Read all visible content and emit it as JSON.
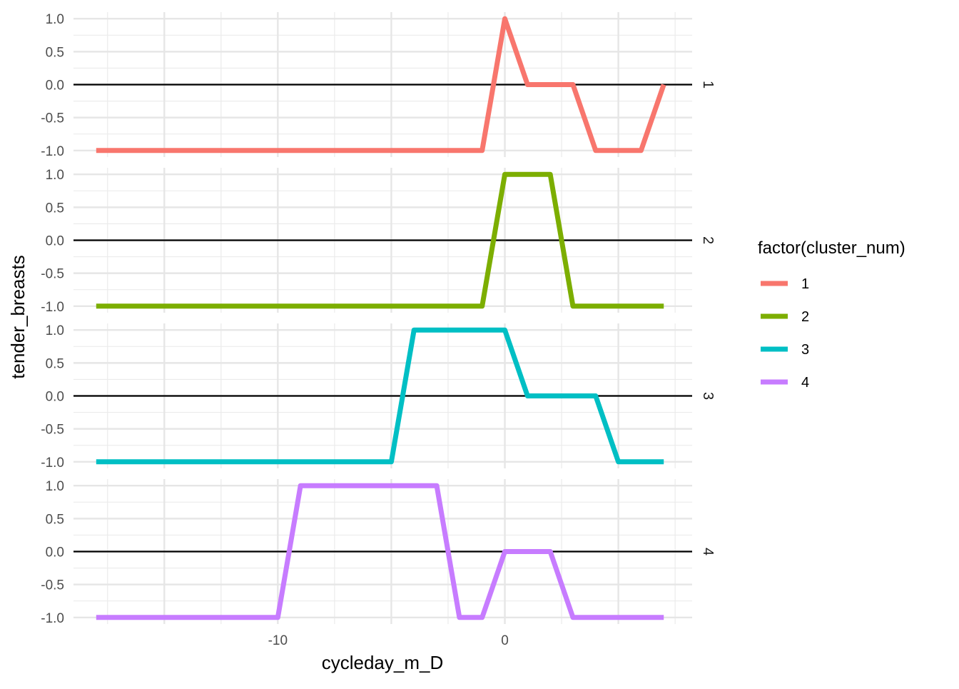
{
  "chart_data": {
    "type": "line",
    "xlabel": "cycleday_m_D",
    "ylabel": "tender_breasts",
    "x_ticks": [
      -10,
      0
    ],
    "x_tick_labels": [
      "-10",
      "0"
    ],
    "y_ticks": [
      1.0,
      0.5,
      0.0,
      -0.5,
      -1.0
    ],
    "y_tick_labels": [
      "1.0",
      "0.5",
      "0.0",
      "-0.5",
      "-1.0"
    ],
    "xlim": [
      -19,
      8.25
    ],
    "ylim": [
      -1.1,
      1.1
    ],
    "grid": true,
    "reference_line_y": 0,
    "facet_by": "cluster_num",
    "legend": {
      "title": "factor(cluster_num)",
      "position": "right"
    },
    "x": [
      -18,
      -17,
      -16,
      -15,
      -14,
      -13,
      -12,
      -11,
      -10,
      -9,
      -8,
      -7,
      -6,
      -5,
      -4,
      -3,
      -2,
      -1,
      0,
      1,
      2,
      3,
      4,
      5,
      6,
      7
    ],
    "series": [
      {
        "name": "1",
        "facet_label": "1",
        "color": "#F8766D",
        "values": [
          -1,
          -1,
          -1,
          -1,
          -1,
          -1,
          -1,
          -1,
          -1,
          -1,
          -1,
          -1,
          -1,
          -1,
          -1,
          -1,
          -1,
          -1,
          1,
          0,
          0,
          0,
          -1,
          -1,
          -1,
          0
        ]
      },
      {
        "name": "2",
        "facet_label": "2",
        "color": "#7CAE00",
        "values": [
          -1,
          -1,
          -1,
          -1,
          -1,
          -1,
          -1,
          -1,
          -1,
          -1,
          -1,
          -1,
          -1,
          -1,
          -1,
          -1,
          -1,
          -1,
          1,
          1,
          1,
          -1,
          -1,
          -1,
          -1,
          -1
        ]
      },
      {
        "name": "3",
        "facet_label": "3",
        "color": "#00BFC4",
        "values": [
          -1,
          -1,
          -1,
          -1,
          -1,
          -1,
          -1,
          -1,
          -1,
          -1,
          -1,
          -1,
          -1,
          -1,
          1,
          1,
          1,
          1,
          1,
          0,
          0,
          0,
          0,
          -1,
          -1,
          -1
        ]
      },
      {
        "name": "4",
        "facet_label": "4",
        "color": "#C77CFF",
        "values": [
          -1,
          -1,
          -1,
          -1,
          -1,
          -1,
          -1,
          -1,
          -1,
          1,
          1,
          1,
          1,
          1,
          1,
          1,
          -1,
          -1,
          0,
          0,
          0,
          -1,
          -1,
          -1,
          -1,
          -1
        ]
      }
    ]
  }
}
